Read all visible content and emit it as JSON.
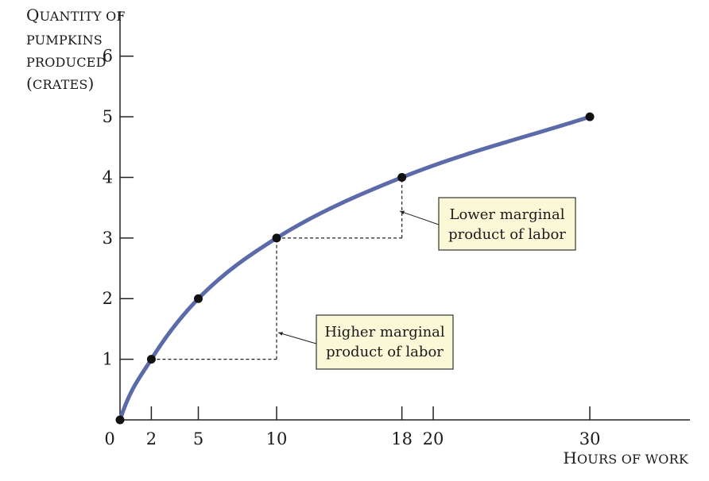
{
  "chart_data": {
    "type": "line",
    "title": "",
    "ylabel": {
      "lines": [
        "Quantity of",
        "pumpkins",
        "produced",
        "(crates)"
      ]
    },
    "xlabel": "Hours of work",
    "x_ticks": [
      0,
      2,
      5,
      10,
      18,
      20,
      30
    ],
    "y_ticks": [
      0,
      1,
      2,
      3,
      4,
      5,
      6
    ],
    "xlim": [
      0,
      37
    ],
    "ylim": [
      0,
      6.9
    ],
    "series": [
      {
        "x": [
          0,
          2,
          5,
          10,
          18,
          30
        ],
        "y": [
          0,
          1,
          2,
          3,
          4,
          5
        ],
        "color": "#5b6aa8"
      }
    ],
    "annotations": [
      {
        "id": "higher",
        "text_lines": [
          "Higher marginal",
          "product of labor"
        ],
        "step_from": [
          2,
          1
        ],
        "step_to": [
          10,
          3
        ]
      },
      {
        "id": "lower",
        "text_lines": [
          "Lower marginal",
          "product of labor"
        ],
        "step_from": [
          10,
          3
        ],
        "step_to": [
          18,
          4
        ]
      }
    ],
    "colors": {
      "curve": "#5b6aa8",
      "point": "#111111",
      "axis": "#222222",
      "annotation_fill": "#fbf8d7"
    },
    "grid": false,
    "legend": "none"
  }
}
